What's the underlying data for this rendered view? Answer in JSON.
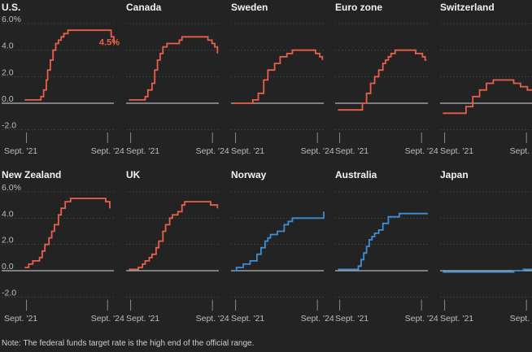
{
  "note": "Note: The federal funds target rate is the high end of the official range.",
  "colors": {
    "background": "#232323",
    "hike_series": "#e8604c",
    "stable_series": "#3d8fd6",
    "zero_line": "#d9d9d9",
    "grid": "#4a4a4a",
    "text": "#f2f2f2",
    "muted_text": "#bdbdbd"
  },
  "chart_data": {
    "type": "line",
    "layout": "small-multiples 5x2",
    "shared_axes": {
      "y_ticks": [
        "6.0%",
        "4.0",
        "2.0",
        "0.0",
        "-2.0"
      ],
      "y_tick_values": [
        6,
        4,
        2,
        0,
        -2
      ],
      "ylim": [
        -2.2,
        6.6
      ],
      "x_ticks": [
        "Sept. '21",
        "Sept. '24"
      ],
      "x_tick_values": [
        2021.667,
        2024.667
      ],
      "xlim": [
        2021.5,
        2024.9
      ],
      "grid": true
    },
    "panels": [
      {
        "title": "U.S.",
        "color": "#e8604c",
        "annotation": "4.5%",
        "x": [
          2021.6,
          2022.2,
          2022.3,
          2022.4,
          2022.45,
          2022.55,
          2022.65,
          2022.75,
          2022.85,
          2022.95,
          2023.05,
          2023.2,
          2023.35,
          2023.55,
          2024.7,
          2024.8,
          2024.9
        ],
        "y": [
          0.25,
          0.5,
          1.0,
          1.75,
          2.5,
          3.25,
          4.0,
          4.5,
          4.75,
          5.0,
          5.25,
          5.5,
          5.5,
          5.5,
          5.5,
          5.0,
          4.5
        ]
      },
      {
        "title": "Canada",
        "color": "#e8604c",
        "x": [
          2021.6,
          2022.2,
          2022.3,
          2022.45,
          2022.55,
          2022.65,
          2022.75,
          2022.85,
          2023.0,
          2023.45,
          2023.55,
          2024.4,
          2024.5,
          2024.65,
          2024.75,
          2024.85
        ],
        "y": [
          0.25,
          0.5,
          1.0,
          1.5,
          2.5,
          3.25,
          3.75,
          4.25,
          4.5,
          4.75,
          5.0,
          5.0,
          4.75,
          4.5,
          4.25,
          3.75
        ]
      },
      {
        "title": "Sweden",
        "color": "#e8604c",
        "x": [
          2021.6,
          2022.3,
          2022.5,
          2022.7,
          2022.85,
          2023.1,
          2023.3,
          2023.55,
          2023.75,
          2024.35,
          2024.6,
          2024.75,
          2024.85
        ],
        "y": [
          0.0,
          0.25,
          0.75,
          1.75,
          2.5,
          3.0,
          3.5,
          3.75,
          4.0,
          4.0,
          3.75,
          3.5,
          3.25
        ]
      },
      {
        "title": "Euro zone",
        "color": "#e8604c",
        "x": [
          2021.6,
          2022.5,
          2022.65,
          2022.8,
          2022.95,
          2023.1,
          2023.25,
          2023.35,
          2023.45,
          2023.55,
          2023.7,
          2024.45,
          2024.7,
          2024.8,
          2024.85
        ],
        "y": [
          -0.5,
          0.0,
          0.75,
          1.5,
          2.0,
          2.5,
          3.0,
          3.25,
          3.5,
          3.75,
          4.0,
          3.75,
          3.5,
          3.25,
          3.25
        ]
      },
      {
        "title": "Switzerland",
        "color": "#e8604c",
        "x": [
          2021.6,
          2022.45,
          2022.7,
          2022.95,
          2023.2,
          2023.45,
          2024.2,
          2024.45,
          2024.7,
          2024.9
        ],
        "y": [
          -0.75,
          -0.25,
          0.5,
          1.0,
          1.5,
          1.75,
          1.5,
          1.25,
          1.0,
          1.0
        ]
      },
      {
        "title": "New Zealand",
        "color": "#e8604c",
        "x": [
          2021.6,
          2021.75,
          2021.9,
          2022.15,
          2022.25,
          2022.35,
          2022.5,
          2022.6,
          2022.7,
          2022.85,
          2022.95,
          2023.1,
          2023.3,
          2023.4,
          2024.6,
          2024.75
        ],
        "y": [
          0.25,
          0.5,
          0.75,
          1.0,
          1.5,
          2.0,
          2.5,
          3.0,
          3.5,
          4.25,
          4.75,
          5.25,
          5.5,
          5.5,
          5.25,
          4.75
        ]
      },
      {
        "title": "UK",
        "color": "#e8604c",
        "x": [
          2021.6,
          2021.95,
          2022.1,
          2022.2,
          2022.35,
          2022.45,
          2022.6,
          2022.7,
          2022.85,
          2022.95,
          2023.1,
          2023.2,
          2023.4,
          2023.55,
          2023.65,
          2024.6,
          2024.85
        ],
        "y": [
          0.1,
          0.25,
          0.5,
          0.75,
          1.0,
          1.25,
          1.75,
          2.25,
          3.0,
          3.5,
          4.0,
          4.25,
          4.5,
          5.0,
          5.25,
          5.0,
          4.75
        ]
      },
      {
        "title": "Norway",
        "color": "#3d8fd6",
        "x": [
          2021.6,
          2021.7,
          2021.95,
          2022.2,
          2022.45,
          2022.6,
          2022.75,
          2022.85,
          2022.95,
          2023.2,
          2023.45,
          2023.6,
          2023.75,
          2024.9
        ],
        "y": [
          0.0,
          0.25,
          0.5,
          0.75,
          1.25,
          1.75,
          2.25,
          2.5,
          2.75,
          3.0,
          3.5,
          3.75,
          4.0,
          4.5
        ]
      },
      {
        "title": "Australia",
        "color": "#3d8fd6",
        "x": [
          2021.6,
          2022.35,
          2022.45,
          2022.55,
          2022.65,
          2022.75,
          2022.85,
          2022.95,
          2023.1,
          2023.25,
          2023.45,
          2023.85,
          2024.9
        ],
        "y": [
          0.1,
          0.35,
          0.85,
          1.35,
          1.85,
          2.35,
          2.6,
          2.85,
          3.1,
          3.6,
          4.1,
          4.35,
          4.35
        ]
      },
      {
        "title": "Japan",
        "color": "#3d8fd6",
        "x": [
          2021.6,
          2024.2,
          2024.55,
          2024.9
        ],
        "y": [
          -0.1,
          0.0,
          0.1,
          0.25
        ]
      }
    ]
  }
}
